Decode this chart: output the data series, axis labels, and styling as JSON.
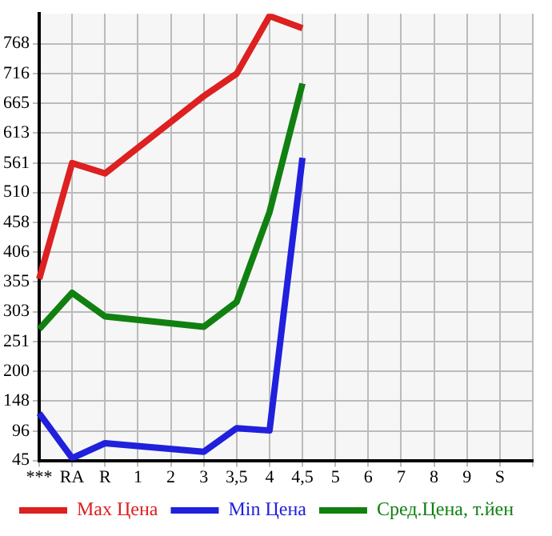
{
  "chart_data": {
    "type": "line",
    "categories": [
      "***",
      "RA",
      "R",
      "1",
      "2",
      "3",
      "3,5",
      "4",
      "4,5",
      "5",
      "6",
      "7",
      "8",
      "9",
      "S",
      null
    ],
    "series": [
      {
        "name": "Max Цена",
        "color": "#dd2020",
        "values": [
          360,
          561,
          543,
          null,
          null,
          677,
          716,
          816,
          795,
          null,
          null,
          null,
          null,
          null,
          null,
          null
        ]
      },
      {
        "name": "Min Цена",
        "color": "#2020dd",
        "values": [
          127,
          49,
          75,
          null,
          null,
          60,
          101,
          97,
          570,
          null,
          null,
          null,
          null,
          null,
          null,
          null
        ]
      },
      {
        "name": "Сред.Цена, т.йен",
        "color": "#108010",
        "values": [
          273,
          336,
          295,
          null,
          null,
          277,
          320,
          476,
          699,
          null,
          null,
          null,
          null,
          null,
          null,
          null
        ]
      }
    ],
    "ylim": [
      45,
      820
    ],
    "yticks": [
      45,
      96,
      148,
      200,
      251,
      303,
      355,
      406,
      458,
      510,
      561,
      613,
      665,
      716,
      768
    ],
    "grid": true,
    "legend": "bottom",
    "marker": "none"
  }
}
